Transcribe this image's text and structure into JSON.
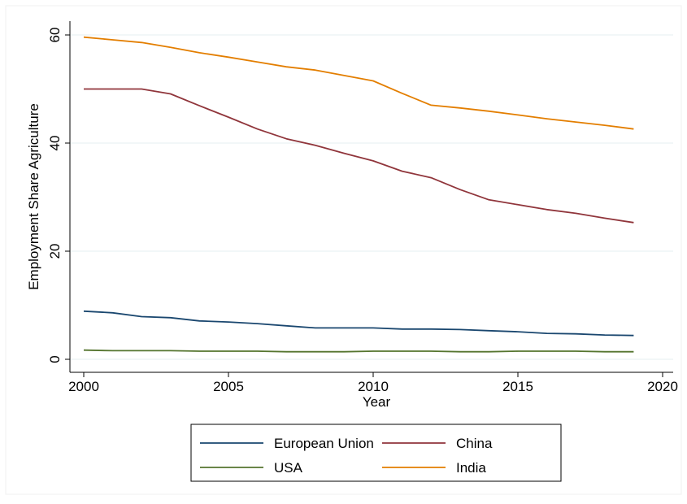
{
  "chart_data": {
    "type": "line",
    "title": "",
    "xlabel": "Year",
    "ylabel": "Employment Share Agriculture",
    "xlim": [
      2000,
      2020
    ],
    "ylim": [
      0,
      60
    ],
    "xticks": [
      "2000",
      "2005",
      "2010",
      "2015",
      "2020"
    ],
    "yticks": [
      "0",
      "20",
      "40",
      "60"
    ],
    "grid": true,
    "legend_position": "bottom",
    "x": [
      2000,
      2001,
      2002,
      2003,
      2004,
      2005,
      2006,
      2007,
      2008,
      2009,
      2010,
      2011,
      2012,
      2013,
      2014,
      2015,
      2016,
      2017,
      2018,
      2019
    ],
    "series": [
      {
        "name": "European Union",
        "color": "#1a476f",
        "values": [
          8.9,
          8.6,
          7.9,
          7.7,
          7.1,
          6.9,
          6.6,
          6.2,
          5.8,
          5.8,
          5.8,
          5.6,
          5.6,
          5.5,
          5.3,
          5.1,
          4.8,
          4.7,
          4.5,
          4.4
        ]
      },
      {
        "name": "China",
        "color": "#90353b",
        "values": [
          50.0,
          50.0,
          50.0,
          49.1,
          46.9,
          44.8,
          42.6,
          40.8,
          39.6,
          38.1,
          36.7,
          34.8,
          33.6,
          31.4,
          29.5,
          28.6,
          27.7,
          27.0,
          26.1,
          25.3
        ]
      },
      {
        "name": "USA",
        "color": "#55752f",
        "values": [
          1.7,
          1.6,
          1.6,
          1.6,
          1.5,
          1.5,
          1.5,
          1.4,
          1.4,
          1.4,
          1.5,
          1.5,
          1.5,
          1.4,
          1.4,
          1.5,
          1.5,
          1.5,
          1.4,
          1.4
        ]
      },
      {
        "name": "India",
        "color": "#e37e00",
        "values": [
          59.6,
          59.1,
          58.6,
          57.7,
          56.7,
          55.9,
          55.0,
          54.1,
          53.5,
          52.5,
          51.5,
          49.2,
          47.0,
          46.5,
          45.9,
          45.2,
          44.5,
          43.9,
          43.3,
          42.6
        ]
      }
    ]
  }
}
